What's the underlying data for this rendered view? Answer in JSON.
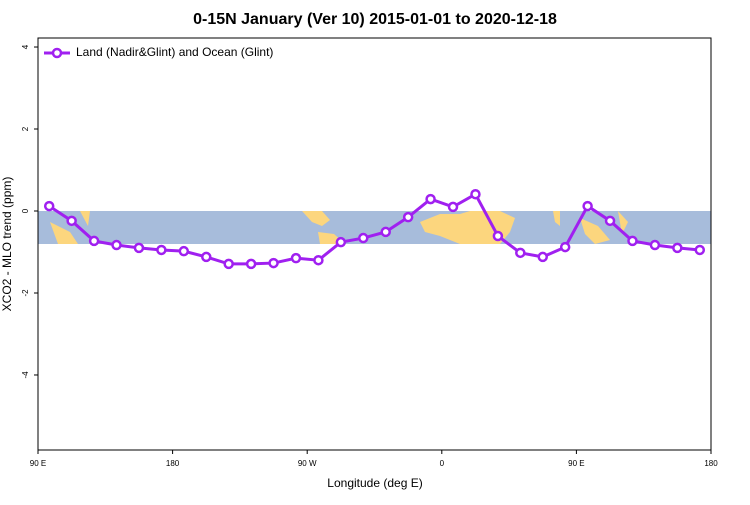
{
  "chart_data": {
    "type": "line",
    "title": "0-15N January (Ver 10)   2015-01-01 to 2020-12-18",
    "x_label": "Longitude (deg E)",
    "y_label": "XCO2 - MLO trend (ppm)",
    "x": [
      97.5,
      112.5,
      127.5,
      142.5,
      157.5,
      172.5,
      187.5,
      202.5,
      217.5,
      232.5,
      247.5,
      262.5,
      277.5,
      292.5,
      307.5,
      322.5,
      337.5,
      352.5,
      367.5,
      382.5,
      397.5,
      412.5,
      427.5,
      442.5,
      457.5,
      472.5,
      487.5,
      502.5,
      517.5,
      532.5
    ],
    "series": [
      {
        "name": "Land (Nadir&Glint) and Ocean (Glint)",
        "color": "#a020f0",
        "values": [
          0.12,
          -0.24,
          -0.73,
          -0.83,
          -0.9,
          -0.95,
          -0.98,
          -1.12,
          -1.29,
          -1.29,
          -1.27,
          -1.15,
          -1.2,
          -0.76,
          -0.66,
          -0.51,
          -0.15,
          0.29,
          0.1,
          0.41,
          -0.61,
          -1.02,
          -1.12,
          -0.88,
          0.12,
          -0.24,
          -0.73,
          -0.83,
          -0.9,
          -0.95
        ]
      }
    ],
    "xlim": [
      90,
      540
    ],
    "xticks": [
      {
        "value": 90,
        "label": "90 E"
      },
      180,
      {
        "value": 270,
        "label": "90 W"
      },
      {
        "value": 360,
        "label": "0"
      },
      {
        "value": 450,
        "label": "90 E"
      },
      {
        "value": 540,
        "label": "180"
      }
    ],
    "ylim": [
      -5.83,
      4.22
    ],
    "yticks": [
      -4,
      -2,
      0,
      2,
      4
    ],
    "legend": "top-left"
  }
}
